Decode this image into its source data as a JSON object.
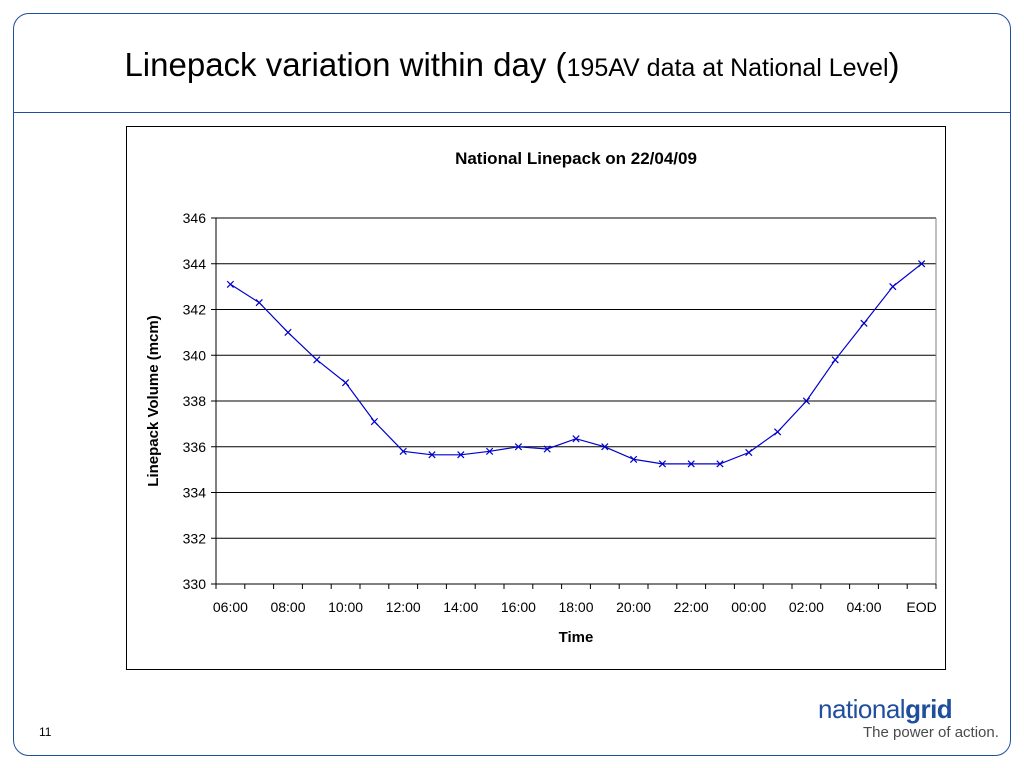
{
  "slide": {
    "title_main": "Linepack variation within day (",
    "title_sub": "195AV data at National Level",
    "title_close": ")",
    "page_number": "11"
  },
  "logo": {
    "word_light": "national",
    "word_bold": "grid",
    "tagline": "The power of action."
  },
  "colors": {
    "frame": "#1f4e9c",
    "series": "#0000cc",
    "grid": "#000000"
  },
  "chart_data": {
    "type": "line",
    "title": "National Linepack on 22/04/09",
    "xlabel": "Time",
    "ylabel": "Linepack Volume (mcm)",
    "ylim": [
      330,
      346
    ],
    "yticks": [
      330,
      332,
      334,
      336,
      338,
      340,
      342,
      344,
      346
    ],
    "grid": true,
    "legend": "none",
    "marker": "x",
    "categories": [
      "06:00",
      "07:00",
      "08:00",
      "09:00",
      "10:00",
      "11:00",
      "12:00",
      "13:00",
      "14:00",
      "15:00",
      "16:00",
      "17:00",
      "18:00",
      "19:00",
      "20:00",
      "21:00",
      "22:00",
      "23:00",
      "00:00",
      "01:00",
      "02:00",
      "03:00",
      "04:00",
      "05:00",
      "EOD"
    ],
    "tick_labels": [
      "06:00",
      "08:00",
      "10:00",
      "12:00",
      "14:00",
      "16:00",
      "18:00",
      "20:00",
      "22:00",
      "00:00",
      "02:00",
      "04:00",
      "EOD"
    ],
    "series": [
      {
        "values": [
          343.1,
          342.3,
          341.0,
          339.8,
          338.8,
          337.1,
          335.8,
          335.65,
          335.65,
          335.8,
          336.0,
          335.9,
          336.35,
          336.0,
          335.45,
          335.25,
          335.25,
          335.25,
          335.75,
          336.65,
          338.0,
          339.8,
          341.4,
          343.0,
          344.0
        ]
      }
    ]
  }
}
